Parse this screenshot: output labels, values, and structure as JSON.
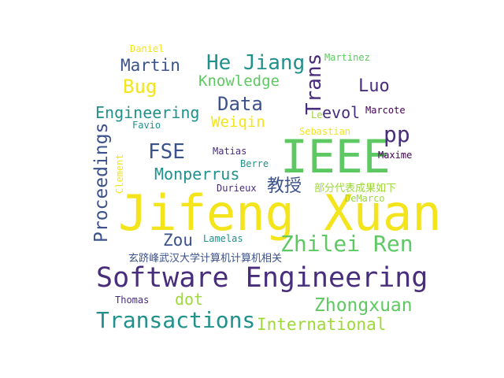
{
  "palette": {
    "background": "#ffffff",
    "yellow": "#f4e41c",
    "lime": "#9ed93a",
    "green": "#5ec962",
    "teal": "#21918c",
    "blue": "#3b528b",
    "indigo": "#472d7b",
    "purple": "#440154"
  },
  "words": {
    "jifeng_xuan": "Jifeng Xuan",
    "software_engineering": "Software Engineering",
    "ieee": "IEEE",
    "zhilei_ren": "Zhilei Ren",
    "transactions": "Transactions",
    "zhongxuan": "Zhongxuan",
    "international": "International",
    "proceedings": "Proceedings",
    "trans": "Trans",
    "he_jiang": "He Jiang",
    "fse": "FSE",
    "monperrus": "Monperrus",
    "engineering": "Engineering",
    "knowledge": "Knowledge",
    "data": "Data",
    "weiqin": "Weiqin",
    "martin": "Martin",
    "bug": "Bug",
    "luo": "Luo",
    "pp": "pp",
    "evol": "evol",
    "le": "Le",
    "zou": "Zou",
    "dot": "dot",
    "jiaoshou": "教授",
    "bufen": "部分代表成果如下",
    "xuanjifeng": "玄跻峰武汉大学计算机计算机相关",
    "daniel": "Daniel",
    "martinez": "Martinez",
    "marcote": "Marcote",
    "favio": "Favio",
    "sebastian": "Sebastian",
    "matias": "Matias",
    "maxime": "Maxime",
    "berre": "Berre",
    "clement": "Clement",
    "durieux": "Durieux",
    "demarco": "DeMarco",
    "lamelas": "Lamelas",
    "thomas": "Thomas"
  }
}
